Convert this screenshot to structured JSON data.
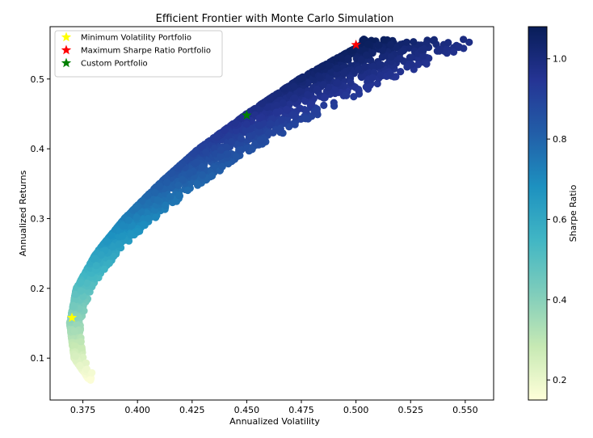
{
  "chart_data": {
    "type": "scatter",
    "title": "Efficient Frontier with Monte Carlo Simulation",
    "xlabel": "Annualized Volatility",
    "ylabel": "Annualized Returns",
    "xlim": [
      0.36,
      0.563
    ],
    "ylim": [
      0.04,
      0.575
    ],
    "xticks": [
      "0.375",
      "0.400",
      "0.425",
      "0.450",
      "0.475",
      "0.500",
      "0.525",
      "0.550"
    ],
    "yticks": [
      "0.1",
      "0.2",
      "0.3",
      "0.4",
      "0.5"
    ],
    "colorbar": {
      "label": "Sharpe Ratio",
      "range": [
        0.15,
        1.08
      ],
      "ticks": [
        "0.2",
        "0.4",
        "0.6",
        "0.8",
        "1.0"
      ],
      "colormap": [
        "#ffffd9",
        "#c7e9b4",
        "#7fcdbb",
        "#41b6c4",
        "#1d91c0",
        "#225ea8",
        "#253494",
        "#081d58"
      ]
    },
    "frontier": [
      {
        "ret": 0.068,
        "vol": 0.378
      },
      {
        "ret": 0.1,
        "vol": 0.371
      },
      {
        "ret": 0.15,
        "vol": 0.369
      },
      {
        "ret": 0.2,
        "vol": 0.372
      },
      {
        "ret": 0.25,
        "vol": 0.381
      },
      {
        "ret": 0.3,
        "vol": 0.394
      },
      {
        "ret": 0.35,
        "vol": 0.41
      },
      {
        "ret": 0.4,
        "vol": 0.428
      },
      {
        "ret": 0.45,
        "vol": 0.45
      },
      {
        "ret": 0.5,
        "vol": 0.474
      },
      {
        "ret": 0.55,
        "vol": 0.503
      }
    ],
    "scatter_extent": {
      "ret_range": [
        0.068,
        0.557
      ],
      "vol_max": 0.558
    },
    "highlights": [
      {
        "name": "Minimum Volatility Portfolio",
        "x": 0.37,
        "y": 0.158,
        "color": "#ffff00"
      },
      {
        "name": "Maximum Sharpe Ratio Portfolio",
        "x": 0.5,
        "y": 0.549,
        "color": "#ff0000"
      },
      {
        "name": "Custom Portfolio",
        "x": 0.45,
        "y": 0.448,
        "color": "#008000"
      }
    ],
    "legend_position": "top-left"
  }
}
